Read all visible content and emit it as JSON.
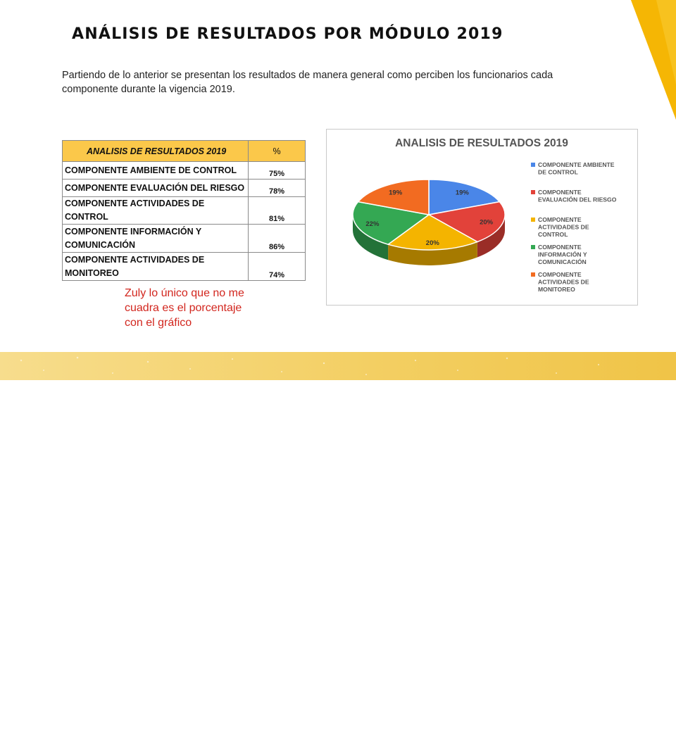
{
  "slide": {
    "title": "ANÁLISIS DE RESULTADOS POR MÓDULO 2019",
    "intro": "Partiendo de lo anterior se presentan los resultados de manera general como perciben los funcionarios cada componente durante la vigencia 2019."
  },
  "table": {
    "header_name": "ANALISIS DE RESULTADOS 2019",
    "header_pct": "%",
    "rows": [
      {
        "name": "COMPONENTE AMBIENTE DE CONTROL",
        "pct": "75%"
      },
      {
        "name": "COMPONENTE EVALUACIÓN DEL RIESGO",
        "pct": "78%"
      },
      {
        "name": "COMPONENTE ACTIVIDADES DE CONTROL",
        "pct": "81%"
      },
      {
        "name": "COMPONENTE INFORMACIÓN Y COMUNICACIÓN",
        "pct": "86%"
      },
      {
        "name": "COMPONENTE ACTIVIDADES DE MONITOREO",
        "pct": "74%"
      }
    ]
  },
  "note": "Zuly lo único que no me cuadra es el porcentaje con el gráfico",
  "chart_data": {
    "type": "pie",
    "title": "ANALISIS DE RESULTADOS 2019",
    "categories": [
      "COMPONENTE AMBIENTE DE CONTROL",
      "COMPONENTE EVALUACIÓN DEL RIESGO",
      "COMPONENTE ACTIVIDADES DE CONTROL",
      "COMPONENTE INFORMACIÓN Y COMUNICACIÓN",
      "COMPONENTE ACTIVIDADES DE MONITOREO"
    ],
    "legend_lines": [
      [
        "COMPONENTE AMBIENTE",
        "DE CONTROL"
      ],
      [
        "COMPONENTE",
        "EVALUACIÓN DEL RIESGO"
      ],
      [
        "COMPONENTE",
        "ACTIVIDADES DE",
        "CONTROL"
      ],
      [
        "COMPONENTE",
        "INFORMACIÓN Y",
        "COMUNICACIÓN"
      ],
      [
        "COMPONENTE",
        "ACTIVIDADES DE",
        "MONITOREO"
      ]
    ],
    "values": [
      19,
      20,
      20,
      22,
      19
    ],
    "labels": [
      "19%",
      "20%",
      "20%",
      "22%",
      "19%"
    ],
    "colors": [
      "#4a86e8",
      "#e2423a",
      "#f4b400",
      "#34a853",
      "#f26b21"
    ],
    "legend_position": "right",
    "style": "3d"
  }
}
